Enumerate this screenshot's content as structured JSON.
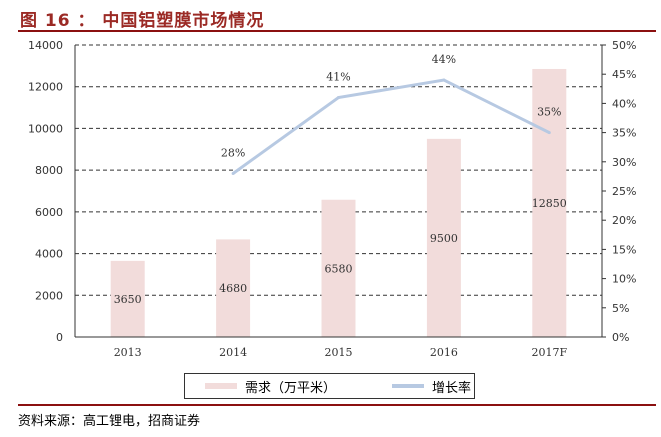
{
  "title": "图 16 ： 中国铝塑膜市场情况",
  "source": "资料来源：高工锂电，招商证券",
  "colors": {
    "bar": "#f2dcdb",
    "line": "#b7c9e2",
    "rule": "#8b1010",
    "title": "#9b2a25"
  },
  "chart_data": {
    "type": "bar+line",
    "categories": [
      "2013",
      "2014",
      "2015",
      "2016",
      "2017F"
    ],
    "series": [
      {
        "name": "需求（万平米）",
        "type": "bar",
        "axis": "left",
        "values": [
          3650,
          4680,
          6580,
          9500,
          12850
        ],
        "labels": [
          "3650",
          "4680",
          "6580",
          "9500",
          "12850"
        ]
      },
      {
        "name": "增长率",
        "type": "line",
        "axis": "right",
        "values": [
          null,
          28,
          41,
          44,
          35
        ],
        "labels": [
          "",
          "28%",
          "41%",
          "44%",
          "35%"
        ]
      }
    ],
    "left_axis": {
      "ylim": [
        0,
        14000
      ],
      "ticks": [
        "0",
        "2000",
        "4000",
        "6000",
        "8000",
        "10000",
        "12000",
        "14000"
      ]
    },
    "right_axis": {
      "ylim": [
        0,
        50
      ],
      "ticks": [
        "0%",
        "5%",
        "10%",
        "15%",
        "20%",
        "25%",
        "30%",
        "35%",
        "40%",
        "45%",
        "50%"
      ]
    },
    "grid": "dashed horizontal",
    "legend": "bottom"
  }
}
